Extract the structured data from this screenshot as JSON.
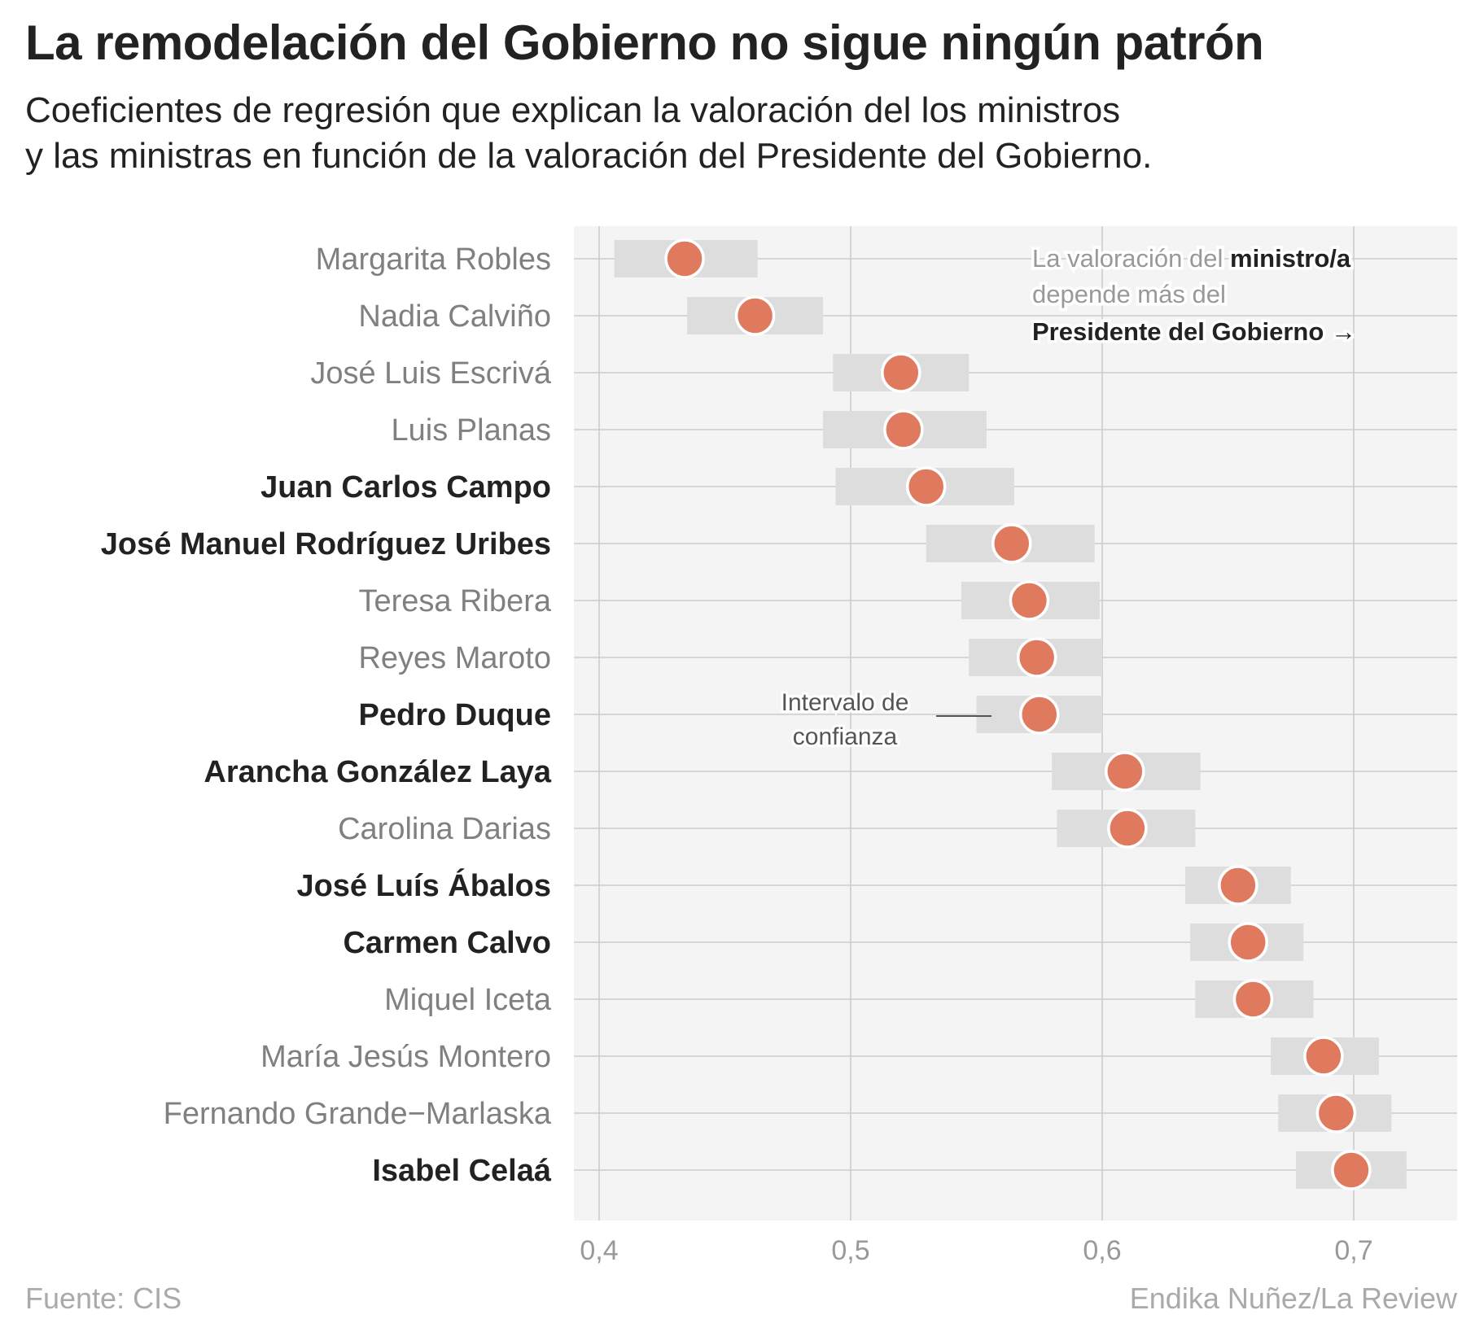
{
  "header": {
    "title": "La remodelación del Gobierno no sigue ningún patrón",
    "subtitle_line1": "Coeficientes de regresión que explican la valoración del los ministros",
    "subtitle_line2": "y las ministras en función de la valoración del Presidente del Gobierno."
  },
  "footer": {
    "source": "Fuente: CIS",
    "credit": "Endika Nuñez/La Review"
  },
  "colors": {
    "point": "#e07a5f",
    "interval": "#dddddd",
    "panel": "#f4f4f4",
    "grid": "#cccccc",
    "label_regular": "#808080",
    "label_bold": "#222222"
  },
  "chart_data": {
    "type": "scatter",
    "title": "La remodelación del Gobierno no sigue ningún patrón",
    "xlabel": "",
    "ylabel": "",
    "xlim": [
      0.39,
      0.735
    ],
    "xticks": [
      0.4,
      0.5,
      0.6,
      0.7
    ],
    "xtick_labels": [
      "0,4",
      "0,5",
      "0,6",
      "0,7"
    ],
    "grid": true,
    "series": [
      {
        "points": [
          {
            "name": "Margarita Robles",
            "value": 0.434,
            "low": 0.406,
            "high": 0.463,
            "bold": false
          },
          {
            "name": "Nadia Calviño",
            "value": 0.462,
            "low": 0.435,
            "high": 0.489,
            "bold": false
          },
          {
            "name": "José Luis Escrivá",
            "value": 0.52,
            "low": 0.493,
            "high": 0.547,
            "bold": false
          },
          {
            "name": "Luis Planas",
            "value": 0.521,
            "low": 0.489,
            "high": 0.554,
            "bold": false
          },
          {
            "name": "Juan Carlos Campo",
            "value": 0.53,
            "low": 0.494,
            "high": 0.565,
            "bold": true
          },
          {
            "name": "José Manuel Rodríguez Uribes",
            "value": 0.564,
            "low": 0.53,
            "high": 0.597,
            "bold": true
          },
          {
            "name": "Teresa Ribera",
            "value": 0.571,
            "low": 0.544,
            "high": 0.599,
            "bold": false
          },
          {
            "name": "Reyes Maroto",
            "value": 0.574,
            "low": 0.547,
            "high": 0.6,
            "bold": false
          },
          {
            "name": "Pedro Duque",
            "value": 0.575,
            "low": 0.55,
            "high": 0.6,
            "bold": true
          },
          {
            "name": "Arancha González Laya",
            "value": 0.609,
            "low": 0.58,
            "high": 0.639,
            "bold": true
          },
          {
            "name": "Carolina Darias",
            "value": 0.61,
            "low": 0.582,
            "high": 0.637,
            "bold": false
          },
          {
            "name": "José Luís Ábalos",
            "value": 0.654,
            "low": 0.633,
            "high": 0.675,
            "bold": true
          },
          {
            "name": "Carmen Calvo",
            "value": 0.658,
            "low": 0.635,
            "high": 0.68,
            "bold": true
          },
          {
            "name": "Miquel Iceta",
            "value": 0.66,
            "low": 0.637,
            "high": 0.684,
            "bold": false
          },
          {
            "name": "María Jesús Montero",
            "value": 0.688,
            "low": 0.667,
            "high": 0.71,
            "bold": false
          },
          {
            "name": "Fernando Grande−Marlaska",
            "value": 0.693,
            "low": 0.67,
            "high": 0.715,
            "bold": false
          },
          {
            "name": "Isabel Celaá",
            "value": 0.699,
            "low": 0.677,
            "high": 0.721,
            "bold": true
          }
        ]
      }
    ],
    "annotations": {
      "ci_line1": "Intervalo de",
      "ci_line2": "confianza",
      "note_line1_regular": "La valoración del ",
      "note_line1_bold": "ministro/a",
      "note_line2": "depende más del",
      "note_line3_bold": "Presidente del Gobierno →"
    }
  }
}
